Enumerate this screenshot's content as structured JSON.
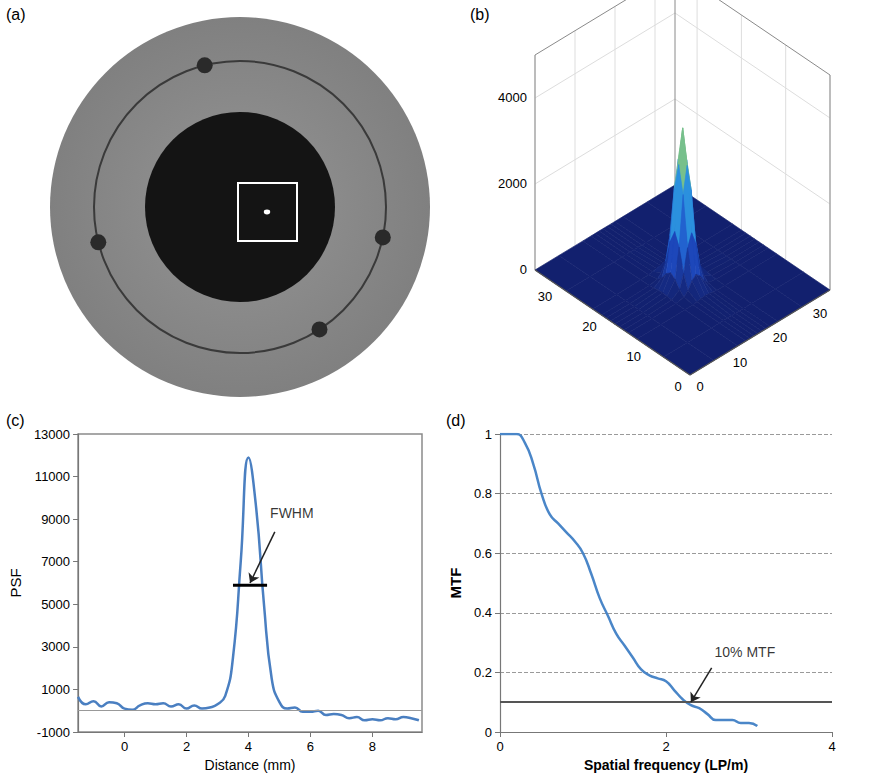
{
  "chart_data": [
    {
      "panel": "(a)",
      "type": "image"
    },
    {
      "panel": "(b)",
      "type": "surface",
      "x": [
        0,
        6,
        12,
        14,
        15,
        16,
        17,
        18,
        19,
        20,
        22,
        28,
        35
      ],
      "y": [
        0,
        6,
        12,
        14,
        15,
        16,
        17,
        18,
        19,
        20,
        22,
        28,
        35
      ],
      "z": [
        [
          0,
          0,
          0,
          0,
          0,
          0,
          0,
          0,
          0,
          0,
          0,
          0,
          0
        ],
        [
          0,
          0,
          0,
          0,
          0,
          0,
          0,
          0,
          0,
          0,
          0,
          0,
          0
        ],
        [
          0,
          0,
          1,
          6,
          18,
          39,
          50,
          39,
          18,
          6,
          1,
          0,
          0
        ],
        [
          0,
          0,
          6,
          44,
          144,
          311,
          400,
          311,
          144,
          44,
          6,
          0,
          0
        ],
        [
          0,
          0,
          18,
          144,
          469,
          1011,
          1300,
          1011,
          469,
          144,
          18,
          0,
          0
        ],
        [
          0,
          0,
          39,
          311,
          1011,
          2178,
          2800,
          2178,
          1011,
          311,
          39,
          0,
          0
        ],
        [
          0,
          0,
          50,
          400,
          1300,
          2800,
          3600,
          2800,
          1300,
          400,
          50,
          0,
          0
        ],
        [
          0,
          0,
          39,
          311,
          1011,
          2178,
          2800,
          2178,
          1011,
          311,
          39,
          0,
          0
        ],
        [
          0,
          0,
          18,
          144,
          469,
          1011,
          1300,
          1011,
          469,
          144,
          18,
          0,
          0
        ],
        [
          0,
          0,
          6,
          44,
          144,
          311,
          400,
          311,
          144,
          44,
          6,
          0,
          0
        ],
        [
          0,
          0,
          1,
          6,
          18,
          39,
          50,
          39,
          18,
          6,
          1,
          0,
          0
        ],
        [
          0,
          0,
          0,
          0,
          0,
          0,
          0,
          0,
          0,
          0,
          0,
          0,
          0
        ],
        [
          0,
          0,
          0,
          0,
          0,
          0,
          0,
          0,
          0,
          0,
          0,
          0,
          0
        ]
      ],
      "xlim": [
        0,
        35
      ],
      "ylim": [
        0,
        35
      ],
      "zlim": [
        0,
        5000
      ],
      "xticks": [
        0,
        10,
        20,
        30
      ],
      "yticks": [
        0,
        10,
        20,
        30
      ],
      "zticks": [
        0,
        2000,
        4000
      ]
    },
    {
      "panel": "(c)",
      "type": "line",
      "x_label": "Distance (mm)",
      "y_label": "PSF",
      "x": [
        -1.5,
        -1.25,
        -1.0,
        -0.75,
        -0.5,
        -0.25,
        0,
        0.25,
        0.5,
        0.75,
        1.0,
        1.25,
        1.5,
        1.75,
        2.0,
        2.25,
        2.5,
        2.75,
        3.0,
        3.25,
        3.5,
        3.75,
        4.0,
        4.25,
        4.5,
        4.75,
        5.0,
        5.25,
        5.5,
        5.75,
        6.0,
        6.25,
        6.5,
        6.75,
        7.0,
        7.25,
        7.5,
        7.75,
        8.0,
        8.25,
        8.5,
        8.75,
        9.0,
        9.25,
        9.5
      ],
      "values": [
        650,
        300,
        450,
        200,
        400,
        350,
        100,
        50,
        250,
        350,
        300,
        350,
        200,
        300,
        100,
        250,
        100,
        150,
        300,
        700,
        2500,
        7000,
        11900,
        9500,
        5000,
        1500,
        400,
        100,
        150,
        -50,
        -50,
        0,
        -200,
        -150,
        -200,
        -350,
        -300,
        -450,
        -400,
        -450,
        -350,
        -400,
        -300,
        -350,
        -450
      ],
      "color": "#4a7fc1",
      "xlim": [
        -1.5,
        9.6
      ],
      "ylim": [
        -1000,
        13000
      ],
      "xticks": [
        0,
        2,
        4,
        6,
        8
      ],
      "yticks": [
        -1000,
        1000,
        3000,
        5000,
        7000,
        9000,
        11000,
        13000
      ],
      "baseline": 0,
      "fwhm_bar": {
        "x": [
          3.5,
          4.6
        ],
        "y": 5900
      },
      "annotations": [
        {
          "text": "FWHM",
          "x": 5.4,
          "y": 9300,
          "arrow_from": [
            4.85,
            8400
          ],
          "arrow_to": [
            4.05,
            6000
          ]
        }
      ],
      "grid": false
    },
    {
      "panel": "(d)",
      "type": "line",
      "x_label": "Spatial frequency (LP/m)",
      "y_label": "MTF",
      "x": [
        0,
        0.1,
        0.2,
        0.3,
        0.4,
        0.5,
        0.6,
        0.7,
        0.8,
        0.9,
        1.0,
        1.1,
        1.2,
        1.3,
        1.4,
        1.5,
        1.6,
        1.7,
        1.8,
        1.9,
        2.0,
        2.1,
        2.2,
        2.3,
        2.4,
        2.5,
        2.6,
        2.7,
        2.8,
        2.9,
        3.0,
        3.1
      ],
      "values": [
        1.0,
        1.0,
        1.0,
        0.97,
        0.9,
        0.8,
        0.73,
        0.7,
        0.67,
        0.64,
        0.6,
        0.53,
        0.45,
        0.39,
        0.33,
        0.29,
        0.25,
        0.21,
        0.19,
        0.18,
        0.17,
        0.14,
        0.11,
        0.09,
        0.08,
        0.06,
        0.04,
        0.04,
        0.04,
        0.03,
        0.03,
        0.02
      ],
      "color": "#4a86c8",
      "xlim": [
        0,
        4
      ],
      "ylim": [
        0,
        1
      ],
      "xticks": [
        0,
        2,
        4
      ],
      "yticks": [
        0,
        0.2,
        0.4,
        0.6,
        0.8,
        1
      ],
      "threshold": 0.1,
      "annotations": [
        {
          "text": "10% MTF",
          "x": 2.95,
          "y": 0.27,
          "arrow_from": [
            2.55,
            0.215
          ],
          "arrow_to": [
            2.3,
            0.1
          ]
        }
      ],
      "grid": true
    }
  ]
}
